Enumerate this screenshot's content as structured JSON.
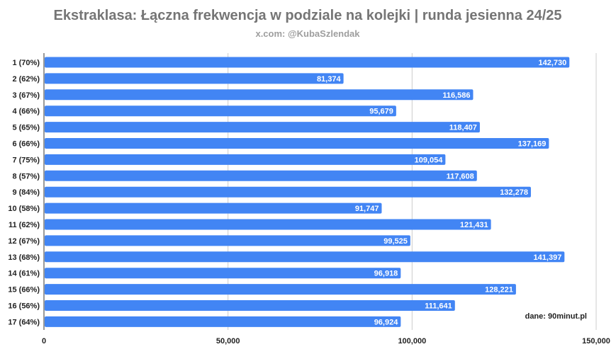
{
  "chart_data": {
    "type": "bar",
    "orientation": "horizontal",
    "title": "Ekstraklasa: Łączna frekwencja w podziale na kolejki | runda jesienna 24/25",
    "subtitle": "x.com: @KubaSzlendak",
    "source_note": "dane: 90minut.pl",
    "xlabel": "",
    "ylabel": "",
    "xlim": [
      0,
      150000
    ],
    "x_ticks": [
      0,
      50000,
      100000,
      150000
    ],
    "x_tick_labels": [
      "0",
      "50,000",
      "100,000",
      "150,000"
    ],
    "grid": true,
    "bar_color": "#4285f4",
    "categories": [
      "1 (70%)",
      "2 (62%)",
      "3 (67%)",
      "4 (66%)",
      "5 (65%)",
      "6 (66%)",
      "7 (75%)",
      "8 (57%)",
      "9 (84%)",
      "10 (58%)",
      "11 (62%)",
      "12 (67%)",
      "13 (68%)",
      "14 (61%)",
      "15 (66%)",
      "16 (56%)",
      "17 (64%)"
    ],
    "values": [
      142730,
      81374,
      116586,
      95679,
      118407,
      137169,
      109054,
      117608,
      132278,
      91747,
      121431,
      99525,
      141397,
      96918,
      128221,
      111641,
      96924
    ],
    "value_labels": [
      "142,730",
      "81,374",
      "116,586",
      "95,679",
      "118,407",
      "137,169",
      "109,054",
      "117,608",
      "132,278",
      "91,747",
      "121,431",
      "99,525",
      "141,397",
      "96,918",
      "128,221",
      "111,641",
      "96,924"
    ]
  }
}
